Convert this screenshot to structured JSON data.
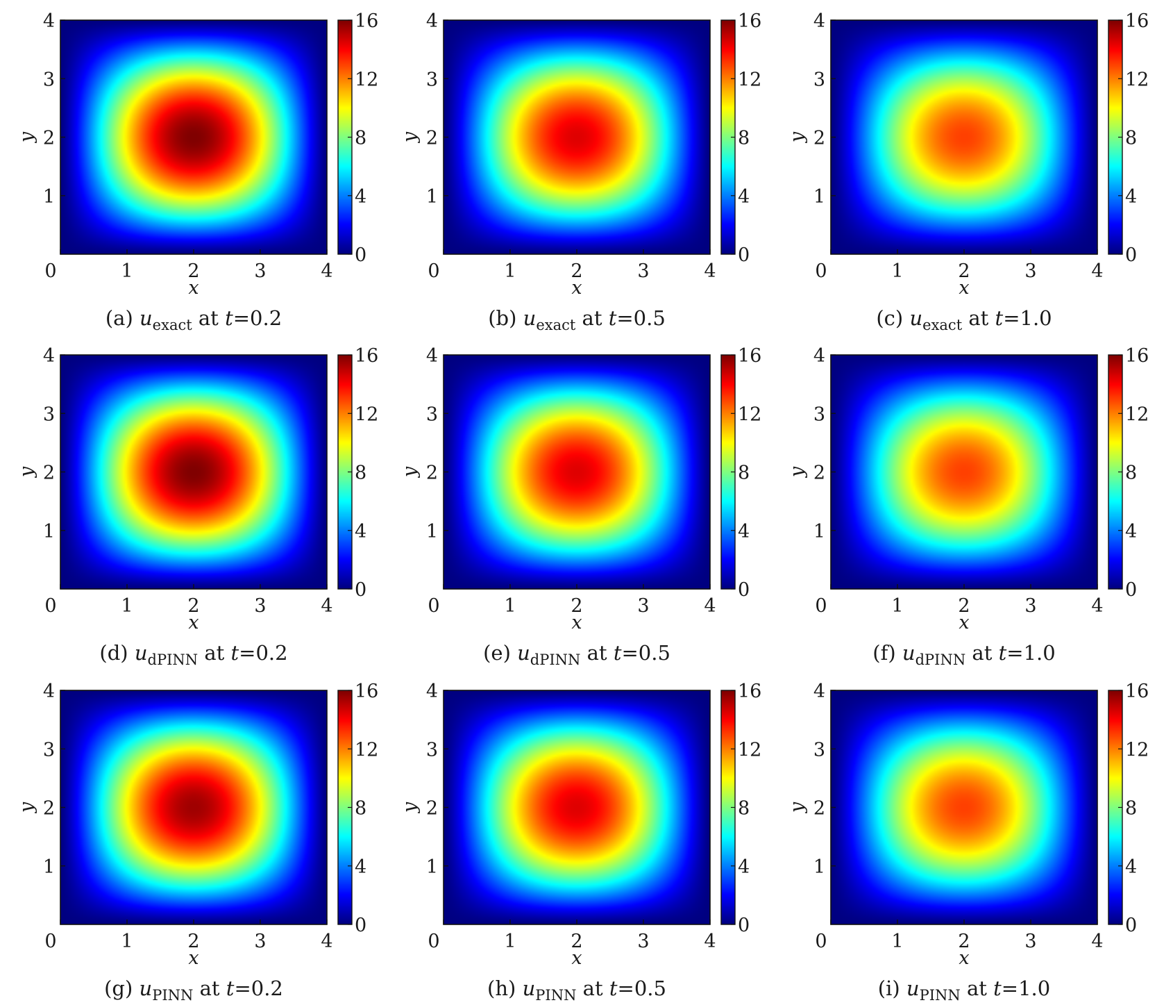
{
  "chart_data": [
    {
      "type": "heatmap",
      "caption": {
        "label": "(a)",
        "var": "u",
        "sub": "exact",
        "at": "at",
        "tvar": "t",
        "eq": "=",
        "tval": "0.2"
      },
      "peak": 16.0,
      "xlabel": "x",
      "ylabel": "y",
      "xticks": [
        "0",
        "1",
        "2",
        "3",
        "4"
      ],
      "yticks": [
        "1",
        "2",
        "3",
        "4"
      ],
      "xlim": [
        0,
        4
      ],
      "ylim": [
        0,
        4
      ],
      "colorbar": {
        "ticks": [
          "0",
          "4",
          "8",
          "12",
          "16"
        ],
        "range": [
          0,
          16
        ]
      }
    },
    {
      "type": "heatmap",
      "caption": {
        "label": "(b)",
        "var": "u",
        "sub": "exact",
        "at": "at",
        "tvar": "t",
        "eq": "=",
        "tval": "0.5"
      },
      "peak": 14.5,
      "xlabel": "x",
      "ylabel": "y",
      "xticks": [
        "0",
        "1",
        "2",
        "3",
        "4"
      ],
      "yticks": [
        "1",
        "2",
        "3",
        "4"
      ],
      "xlim": [
        0,
        4
      ],
      "ylim": [
        0,
        4
      ],
      "colorbar": {
        "ticks": [
          "0",
          "4",
          "8",
          "12",
          "16"
        ],
        "range": [
          0,
          16
        ]
      }
    },
    {
      "type": "heatmap",
      "caption": {
        "label": "(c)",
        "var": "u",
        "sub": "exact",
        "at": "at",
        "tvar": "t",
        "eq": "=",
        "tval": "1.0"
      },
      "peak": 13.0,
      "xlabel": "x",
      "ylabel": "y",
      "xticks": [
        "0",
        "1",
        "2",
        "3",
        "4"
      ],
      "yticks": [
        "1",
        "2",
        "3",
        "4"
      ],
      "xlim": [
        0,
        4
      ],
      "ylim": [
        0,
        4
      ],
      "colorbar": {
        "ticks": [
          "0",
          "4",
          "8",
          "12",
          "16"
        ],
        "range": [
          0,
          16
        ]
      }
    },
    {
      "type": "heatmap",
      "caption": {
        "label": "(d)",
        "var": "u",
        "sub": "dPINN",
        "at": "at",
        "tvar": "t",
        "eq": "=",
        "tval": "0.2"
      },
      "peak": 16.0,
      "xlabel": "x",
      "ylabel": "y",
      "xticks": [
        "0",
        "1",
        "2",
        "3",
        "4"
      ],
      "yticks": [
        "1",
        "2",
        "3",
        "4"
      ],
      "xlim": [
        0,
        4
      ],
      "ylim": [
        0,
        4
      ],
      "colorbar": {
        "ticks": [
          "0",
          "4",
          "8",
          "12",
          "16"
        ],
        "range": [
          0,
          16
        ]
      }
    },
    {
      "type": "heatmap",
      "caption": {
        "label": "(e)",
        "var": "u",
        "sub": "dPINN",
        "at": "at",
        "tvar": "t",
        "eq": "=",
        "tval": "0.5"
      },
      "peak": 14.5,
      "xlabel": "x",
      "ylabel": "y",
      "xticks": [
        "0",
        "1",
        "2",
        "3",
        "4"
      ],
      "yticks": [
        "1",
        "2",
        "3",
        "4"
      ],
      "xlim": [
        0,
        4
      ],
      "ylim": [
        0,
        4
      ],
      "colorbar": {
        "ticks": [
          "0",
          "4",
          "8",
          "12",
          "16"
        ],
        "range": [
          0,
          16
        ]
      }
    },
    {
      "type": "heatmap",
      "caption": {
        "label": "(f)",
        "var": "u",
        "sub": "dPINN",
        "at": "at",
        "tvar": "t",
        "eq": "=",
        "tval": "1.0"
      },
      "peak": 13.0,
      "xlabel": "x",
      "ylabel": "y",
      "xticks": [
        "0",
        "1",
        "2",
        "3",
        "4"
      ],
      "yticks": [
        "1",
        "2",
        "3",
        "4"
      ],
      "xlim": [
        0,
        4
      ],
      "ylim": [
        0,
        4
      ],
      "colorbar": {
        "ticks": [
          "0",
          "4",
          "8",
          "12",
          "16"
        ],
        "range": [
          0,
          16
        ]
      }
    },
    {
      "type": "heatmap",
      "caption": {
        "label": "(g)",
        "var": "u",
        "sub": "PINN",
        "at": "at",
        "tvar": "t",
        "eq": "=",
        "tval": "0.2"
      },
      "peak": 15.5,
      "xlabel": "x",
      "ylabel": "y",
      "xticks": [
        "0",
        "1",
        "2",
        "3",
        "4"
      ],
      "yticks": [
        "1",
        "2",
        "3",
        "4"
      ],
      "xlim": [
        0,
        4
      ],
      "ylim": [
        0,
        4
      ],
      "colorbar": {
        "ticks": [
          "0",
          "4",
          "8",
          "12",
          "16"
        ],
        "range": [
          0,
          16
        ]
      }
    },
    {
      "type": "heatmap",
      "caption": {
        "label": "(h)",
        "var": "u",
        "sub": "PINN",
        "at": "at",
        "tvar": "t",
        "eq": "=",
        "tval": "0.5"
      },
      "peak": 14.5,
      "xlabel": "x",
      "ylabel": "y",
      "xticks": [
        "0",
        "1",
        "2",
        "3",
        "4"
      ],
      "yticks": [
        "1",
        "2",
        "3",
        "4"
      ],
      "xlim": [
        0,
        4
      ],
      "ylim": [
        0,
        4
      ],
      "colorbar": {
        "ticks": [
          "0",
          "4",
          "8",
          "12",
          "16"
        ],
        "range": [
          0,
          16
        ]
      }
    },
    {
      "type": "heatmap",
      "caption": {
        "label": "(i)",
        "var": "u",
        "sub": "PINN",
        "at": "at",
        "tvar": "t",
        "eq": "=",
        "tval": "1.0"
      },
      "peak": 13.0,
      "xlabel": "x",
      "ylabel": "y",
      "xticks": [
        "0",
        "1",
        "2",
        "3",
        "4"
      ],
      "yticks": [
        "1",
        "2",
        "3",
        "4"
      ],
      "xlim": [
        0,
        4
      ],
      "ylim": [
        0,
        4
      ],
      "colorbar": {
        "ticks": [
          "0",
          "4",
          "8",
          "12",
          "16"
        ],
        "range": [
          0,
          16
        ]
      }
    }
  ]
}
